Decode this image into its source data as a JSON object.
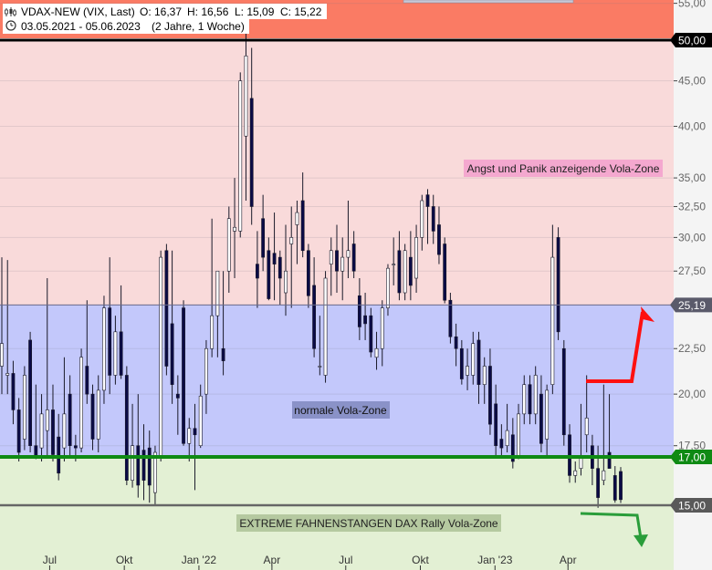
{
  "header": {
    "instrument": "VDAX-NEW (VIX, Last)",
    "open": "O: 16,37",
    "high": "H: 16,56",
    "low": "L: 15,09",
    "close": "C: 15,22",
    "range": "03.05.2021 - 05.06.2023",
    "duration": "(2 Jahre, 1 Woche)"
  },
  "colors": {
    "panic_zone": "#f9dada",
    "normal_zone": "#c3c8fb",
    "extreme_zone": "#e3f0d4",
    "top_band": "#fa7b64",
    "support_line": "#0f8a14",
    "arrow_red": "#ff1010",
    "arrow_green": "#2a9d3a",
    "candle_down": "#0a0a45",
    "candle_up_fill": "#ffffff"
  },
  "chart_data": {
    "type": "candlestick",
    "title": "VDAX-NEW (VIX, Last)",
    "y_scale": "log",
    "ylim": [
      14.5,
      55
    ],
    "y_ticks": [
      "17,50",
      "20,00",
      "22,50",
      "27,50",
      "30,00",
      "32,50",
      "35,00",
      "40,00",
      "45,00",
      "50,00",
      "55,00"
    ],
    "y_tick_values": [
      17.5,
      20,
      22.5,
      27.5,
      30,
      32.5,
      35,
      40,
      45,
      50,
      55
    ],
    "x_labels": [
      "Jul",
      "Okt",
      "Jan '22",
      "Apr",
      "Jul",
      "Okt",
      "Jan '23",
      "Apr"
    ],
    "x_label_dates": [
      "2021-07-01",
      "2021-10-01",
      "2022-01-01",
      "2022-04-01",
      "2022-07-01",
      "2022-10-01",
      "2023-01-01",
      "2023-04-01"
    ],
    "x_range": [
      "2021-05-03",
      "2023-06-05"
    ],
    "price_markers": [
      {
        "label": "50,00",
        "value": 50.0
      },
      {
        "label": "25,19",
        "value": 25.19
      },
      {
        "label": "17,00",
        "value": 17.0
      },
      {
        "label": "15,00",
        "value": 15.0
      }
    ],
    "zones": [
      {
        "name": "Angst und Panik anzeigende Vola-Zone",
        "from": 25.19,
        "to": 50.0
      },
      {
        "name": "normale Vola-Zone",
        "from": 17.0,
        "to": 25.19
      },
      {
        "name": "EXTREME FAHNENSTANGEN DAX Rally Vola-Zone",
        "from": 15.0,
        "to": 17.0
      }
    ],
    "candles": [
      {
        "date": "2021-05-03",
        "o": 21.5,
        "h": 28.5,
        "l": 20.0,
        "c": 22.8
      },
      {
        "date": "2021-05-10",
        "o": 21.0,
        "h": 28.3,
        "l": 20.0,
        "c": 21.1
      },
      {
        "date": "2021-05-17",
        "o": 21.1,
        "h": 21.8,
        "l": 18.5,
        "c": 19.2
      },
      {
        "date": "2021-05-24",
        "o": 19.2,
        "h": 19.8,
        "l": 16.8,
        "c": 17.2
      },
      {
        "date": "2021-05-31",
        "o": 17.8,
        "h": 21.5,
        "l": 17.3,
        "c": 21.0
      },
      {
        "date": "2021-06-07",
        "o": 23.0,
        "h": 23.5,
        "l": 17.2,
        "c": 17.5
      },
      {
        "date": "2021-06-14",
        "o": 17.5,
        "h": 20.5,
        "l": 16.9,
        "c": 17.0
      },
      {
        "date": "2021-06-21",
        "o": 17.4,
        "h": 20.0,
        "l": 16.8,
        "c": 19.0
      },
      {
        "date": "2021-06-28",
        "o": 18.2,
        "h": 27.0,
        "l": 17.0,
        "c": 19.2
      },
      {
        "date": "2021-07-05",
        "o": 19.2,
        "h": 20.5,
        "l": 16.8,
        "c": 17.1
      },
      {
        "date": "2021-07-12",
        "o": 17.9,
        "h": 19.0,
        "l": 16.0,
        "c": 16.3
      },
      {
        "date": "2021-07-19",
        "o": 17.4,
        "h": 22.0,
        "l": 16.8,
        "c": 19.0
      },
      {
        "date": "2021-07-26",
        "o": 20.0,
        "h": 21.0,
        "l": 17.0,
        "c": 17.5
      },
      {
        "date": "2021-08-02",
        "o": 17.5,
        "h": 18.0,
        "l": 16.8,
        "c": 17.4
      },
      {
        "date": "2021-08-09",
        "o": 17.4,
        "h": 22.5,
        "l": 17.2,
        "c": 22.0
      },
      {
        "date": "2021-08-16",
        "o": 21.5,
        "h": 25.5,
        "l": 19.5,
        "c": 20.0
      },
      {
        "date": "2021-08-23",
        "o": 20.0,
        "h": 20.5,
        "l": 17.3,
        "c": 17.8
      },
      {
        "date": "2021-08-30",
        "o": 17.8,
        "h": 21.0,
        "l": 17.2,
        "c": 20.2
      },
      {
        "date": "2021-09-06",
        "o": 20.2,
        "h": 25.8,
        "l": 19.5,
        "c": 25.0
      },
      {
        "date": "2021-09-13",
        "o": 25.0,
        "h": 28.5,
        "l": 20.0,
        "c": 21.0
      },
      {
        "date": "2021-09-20",
        "o": 21.0,
        "h": 24.5,
        "l": 20.5,
        "c": 23.5
      },
      {
        "date": "2021-09-27",
        "o": 23.5,
        "h": 26.5,
        "l": 20.8,
        "c": 21.0
      },
      {
        "date": "2021-10-04",
        "o": 21.0,
        "h": 21.5,
        "l": 15.8,
        "c": 16.0
      },
      {
        "date": "2021-10-11",
        "o": 16.0,
        "h": 19.5,
        "l": 15.7,
        "c": 17.5
      },
      {
        "date": "2021-10-18",
        "o": 17.5,
        "h": 20.0,
        "l": 15.3,
        "c": 15.8
      },
      {
        "date": "2021-10-25",
        "o": 17.3,
        "h": 18.5,
        "l": 15.2,
        "c": 16.0
      },
      {
        "date": "2021-11-01",
        "o": 17.4,
        "h": 18.2,
        "l": 15.1,
        "c": 15.8
      },
      {
        "date": "2021-11-08",
        "o": 15.5,
        "h": 17.5,
        "l": 15.0,
        "c": 17.2
      },
      {
        "date": "2021-11-15",
        "o": 17.0,
        "h": 29.0,
        "l": 16.8,
        "c": 28.5
      },
      {
        "date": "2021-11-22",
        "o": 29.0,
        "h": 29.5,
        "l": 21.0,
        "c": 21.5
      },
      {
        "date": "2021-11-29",
        "o": 24.0,
        "h": 29.0,
        "l": 19.5,
        "c": 20.5
      },
      {
        "date": "2021-12-06",
        "o": 20.0,
        "h": 21.0,
        "l": 18.0,
        "c": 19.8
      },
      {
        "date": "2021-12-13",
        "o": 25.0,
        "h": 25.5,
        "l": 17.5,
        "c": 17.6
      },
      {
        "date": "2021-12-20",
        "o": 17.6,
        "h": 18.8,
        "l": 16.8,
        "c": 18.3
      },
      {
        "date": "2021-12-27",
        "o": 18.3,
        "h": 19.5,
        "l": 15.6,
        "c": 18.0
      },
      {
        "date": "2022-01-03",
        "o": 17.5,
        "h": 20.5,
        "l": 17.4,
        "c": 19.9
      },
      {
        "date": "2022-01-10",
        "o": 20.0,
        "h": 23.0,
        "l": 19.0,
        "c": 22.5
      },
      {
        "date": "2022-01-17",
        "o": 22.5,
        "h": 31.5,
        "l": 22.0,
        "c": 24.5
      },
      {
        "date": "2022-01-24",
        "o": 24.5,
        "h": 27.5,
        "l": 22.0,
        "c": 27.5
      },
      {
        "date": "2022-01-31",
        "o": 22.5,
        "h": 27.5,
        "l": 21.0,
        "c": 21.8
      },
      {
        "date": "2022-02-07",
        "o": 27.5,
        "h": 32.5,
        "l": 26.0,
        "c": 31.5
      },
      {
        "date": "2022-02-14",
        "o": 30.5,
        "h": 35.0,
        "l": 27.0,
        "c": 30.8
      },
      {
        "date": "2022-02-21",
        "o": 30.5,
        "h": 46.0,
        "l": 30.0,
        "c": 45.0
      },
      {
        "date": "2022-02-28",
        "o": 39.0,
        "h": 51.0,
        "l": 33.0,
        "c": 48.0
      },
      {
        "date": "2022-03-07",
        "o": 43.0,
        "h": 49.0,
        "l": 31.0,
        "c": 32.5
      },
      {
        "date": "2022-03-14",
        "o": 28.0,
        "h": 30.5,
        "l": 25.0,
        "c": 27.0
      },
      {
        "date": "2022-03-21",
        "o": 31.5,
        "h": 33.5,
        "l": 27.5,
        "c": 28.5
      },
      {
        "date": "2022-03-28",
        "o": 29.0,
        "h": 30.0,
        "l": 25.5,
        "c": 25.6
      },
      {
        "date": "2022-04-04",
        "o": 28.8,
        "h": 32.0,
        "l": 25.5,
        "c": 28.0
      },
      {
        "date": "2022-04-11",
        "o": 28.5,
        "h": 29.0,
        "l": 25.2,
        "c": 27.0
      },
      {
        "date": "2022-04-18",
        "o": 26.0,
        "h": 31.0,
        "l": 24.5,
        "c": 27.5
      },
      {
        "date": "2022-04-25",
        "o": 29.5,
        "h": 32.5,
        "l": 25.0,
        "c": 30.0
      },
      {
        "date": "2022-05-02",
        "o": 31.0,
        "h": 33.0,
        "l": 28.0,
        "c": 32.0
      },
      {
        "date": "2022-05-09",
        "o": 33.0,
        "h": 35.5,
        "l": 28.5,
        "c": 29.0
      },
      {
        "date": "2022-05-16",
        "o": 29.0,
        "h": 29.5,
        "l": 25.0,
        "c": 25.8
      },
      {
        "date": "2022-05-23",
        "o": 26.5,
        "h": 28.5,
        "l": 22.0,
        "c": 22.5
      },
      {
        "date": "2022-05-30",
        "o": 21.5,
        "h": 24.5,
        "l": 21.0,
        "c": 21.5
      },
      {
        "date": "2022-06-06",
        "o": 21.0,
        "h": 27.5,
        "l": 20.6,
        "c": 27.0
      },
      {
        "date": "2022-06-13",
        "o": 28.0,
        "h": 30.0,
        "l": 25.8,
        "c": 29.0
      },
      {
        "date": "2022-06-20",
        "o": 29.0,
        "h": 31.0,
        "l": 26.0,
        "c": 27.5
      },
      {
        "date": "2022-06-27",
        "o": 27.5,
        "h": 30.0,
        "l": 25.5,
        "c": 28.5
      },
      {
        "date": "2022-07-04",
        "o": 28.5,
        "h": 33.0,
        "l": 27.0,
        "c": 29.0
      },
      {
        "date": "2022-07-11",
        "o": 29.5,
        "h": 30.5,
        "l": 27.0,
        "c": 27.5
      },
      {
        "date": "2022-07-18",
        "o": 25.8,
        "h": 27.0,
        "l": 23.0,
        "c": 23.8
      },
      {
        "date": "2022-07-25",
        "o": 24.5,
        "h": 26.0,
        "l": 23.0,
        "c": 24.0
      },
      {
        "date": "2022-08-01",
        "o": 24.5,
        "h": 25.0,
        "l": 22.0,
        "c": 22.3
      },
      {
        "date": "2022-08-08",
        "o": 22.0,
        "h": 23.5,
        "l": 21.3,
        "c": 22.5
      },
      {
        "date": "2022-08-15",
        "o": 22.5,
        "h": 25.5,
        "l": 21.5,
        "c": 25.0
      },
      {
        "date": "2022-08-22",
        "o": 25.0,
        "h": 28.0,
        "l": 24.5,
        "c": 27.7
      },
      {
        "date": "2022-08-29",
        "o": 28.0,
        "h": 30.0,
        "l": 26.5,
        "c": 28.0
      },
      {
        "date": "2022-09-05",
        "o": 29.0,
        "h": 30.5,
        "l": 25.5,
        "c": 26.0
      },
      {
        "date": "2022-09-12",
        "o": 26.0,
        "h": 29.5,
        "l": 25.5,
        "c": 29.0
      },
      {
        "date": "2022-09-19",
        "o": 28.5,
        "h": 30.5,
        "l": 25.5,
        "c": 26.5
      },
      {
        "date": "2022-09-26",
        "o": 27.0,
        "h": 31.0,
        "l": 26.0,
        "c": 30.0
      },
      {
        "date": "2022-10-03",
        "o": 30.0,
        "h": 33.5,
        "l": 29.0,
        "c": 33.0
      },
      {
        "date": "2022-10-10",
        "o": 33.5,
        "h": 34.0,
        "l": 29.5,
        "c": 32.5
      },
      {
        "date": "2022-10-17",
        "o": 32.5,
        "h": 33.5,
        "l": 29.5,
        "c": 30.5
      },
      {
        "date": "2022-10-24",
        "o": 31.0,
        "h": 32.5,
        "l": 28.0,
        "c": 28.7
      },
      {
        "date": "2022-10-31",
        "o": 29.5,
        "h": 30.0,
        "l": 25.3,
        "c": 25.5
      },
      {
        "date": "2022-11-07",
        "o": 25.5,
        "h": 26.0,
        "l": 22.8,
        "c": 23.2
      },
      {
        "date": "2022-11-14",
        "o": 23.2,
        "h": 24.0,
        "l": 21.5,
        "c": 22.5
      },
      {
        "date": "2022-11-21",
        "o": 22.5,
        "h": 23.0,
        "l": 20.5,
        "c": 20.8
      },
      {
        "date": "2022-11-28",
        "o": 21.0,
        "h": 22.5,
        "l": 20.2,
        "c": 21.5
      },
      {
        "date": "2022-12-05",
        "o": 21.0,
        "h": 23.5,
        "l": 20.5,
        "c": 22.8
      },
      {
        "date": "2022-12-12",
        "o": 23.0,
        "h": 23.5,
        "l": 19.5,
        "c": 20.5
      },
      {
        "date": "2022-12-19",
        "o": 20.5,
        "h": 22.0,
        "l": 19.5,
        "c": 21.5
      },
      {
        "date": "2022-12-26",
        "o": 21.5,
        "h": 22.5,
        "l": 18.0,
        "c": 18.5
      },
      {
        "date": "2023-01-02",
        "o": 19.5,
        "h": 20.5,
        "l": 17.0,
        "c": 17.5
      },
      {
        "date": "2023-01-09",
        "o": 17.8,
        "h": 18.5,
        "l": 17.0,
        "c": 17.4
      },
      {
        "date": "2023-01-16",
        "o": 17.5,
        "h": 19.5,
        "l": 17.2,
        "c": 18.2
      },
      {
        "date": "2023-01-23",
        "o": 18.0,
        "h": 18.8,
        "l": 16.5,
        "c": 16.8
      },
      {
        "date": "2023-01-30",
        "o": 17.0,
        "h": 19.5,
        "l": 16.9,
        "c": 19.0
      },
      {
        "date": "2023-02-06",
        "o": 19.0,
        "h": 21.0,
        "l": 18.5,
        "c": 20.5
      },
      {
        "date": "2023-02-13",
        "o": 20.5,
        "h": 21.0,
        "l": 18.5,
        "c": 19.0
      },
      {
        "date": "2023-02-20",
        "o": 19.0,
        "h": 21.5,
        "l": 18.5,
        "c": 21.0
      },
      {
        "date": "2023-02-27",
        "o": 20.0,
        "h": 21.0,
        "l": 17.2,
        "c": 17.6
      },
      {
        "date": "2023-03-06",
        "o": 17.8,
        "h": 20.5,
        "l": 17.0,
        "c": 20.2
      },
      {
        "date": "2023-03-13",
        "o": 20.5,
        "h": 31.0,
        "l": 20.0,
        "c": 28.5
      },
      {
        "date": "2023-03-20",
        "o": 30.0,
        "h": 30.8,
        "l": 23.0,
        "c": 23.5
      },
      {
        "date": "2023-03-27",
        "o": 22.5,
        "h": 23.0,
        "l": 17.5,
        "c": 18.0
      },
      {
        "date": "2023-04-03",
        "o": 18.0,
        "h": 18.5,
        "l": 15.9,
        "c": 16.2
      },
      {
        "date": "2023-04-10",
        "o": 16.2,
        "h": 16.8,
        "l": 15.9,
        "c": 16.4
      },
      {
        "date": "2023-04-17",
        "o": 16.5,
        "h": 19.5,
        "l": 16.2,
        "c": 17.0
      },
      {
        "date": "2023-04-24",
        "o": 18.0,
        "h": 21.0,
        "l": 17.2,
        "c": 18.8
      },
      {
        "date": "2023-05-01",
        "o": 17.5,
        "h": 18.0,
        "l": 15.8,
        "c": 16.5
      },
      {
        "date": "2023-05-08",
        "o": 16.5,
        "h": 17.5,
        "l": 14.9,
        "c": 15.3
      },
      {
        "date": "2023-05-15",
        "o": 16.0,
        "h": 20.5,
        "l": 15.8,
        "c": 16.4
      },
      {
        "date": "2023-05-22",
        "o": 17.2,
        "h": 20.0,
        "l": 16.5,
        "c": 16.5
      },
      {
        "date": "2023-05-29",
        "o": 16.2,
        "h": 16.6,
        "l": 15.1,
        "c": 15.2
      },
      {
        "date": "2023-06-05",
        "o": 16.37,
        "h": 16.56,
        "l": 15.09,
        "c": 15.22
      }
    ]
  }
}
